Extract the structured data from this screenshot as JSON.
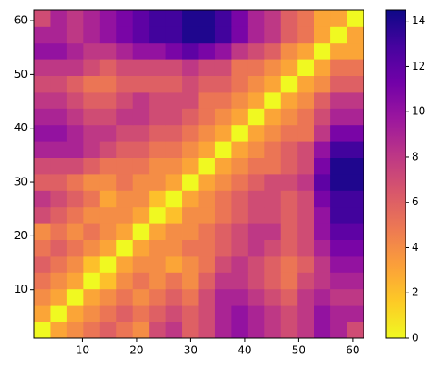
{
  "chart_data": {
    "type": "heatmap",
    "colormap": "plasma_r",
    "xlim": [
      1,
      62
    ],
    "ylim": [
      1,
      62
    ],
    "xticks": [
      10,
      20,
      30,
      40,
      50,
      60
    ],
    "yticks": [
      10,
      20,
      30,
      40,
      50,
      60
    ],
    "clim": [
      0,
      14.5
    ],
    "cticks": [
      0,
      2,
      4,
      6,
      8,
      10,
      12,
      14
    ],
    "z": [
      [
        0,
        3,
        4,
        5,
        6,
        5,
        4,
        7,
        8,
        6,
        7,
        9,
        10,
        9,
        8,
        7,
        8,
        10,
        9,
        7
      ],
      [
        3,
        0,
        3,
        4,
        5,
        6,
        5,
        6,
        7,
        6,
        7,
        9,
        10,
        9,
        8,
        7,
        8,
        10,
        9,
        9
      ],
      [
        4,
        3,
        0,
        3,
        4,
        5,
        4,
        5,
        6,
        5,
        7,
        9,
        9,
        8,
        7,
        6,
        8,
        9,
        8,
        8
      ],
      [
        5,
        4,
        3,
        0,
        2,
        4,
        5,
        4,
        5,
        4,
        6,
        8,
        8,
        7,
        6,
        5,
        7,
        8,
        9,
        9
      ],
      [
        6,
        5,
        4,
        2,
        0,
        3,
        4,
        4,
        3,
        4,
        5,
        7,
        8,
        7,
        6,
        5,
        6,
        8,
        10,
        10
      ],
      [
        5,
        6,
        5,
        4,
        3,
        0,
        3,
        4,
        4,
        5,
        5,
        6,
        7,
        8,
        7,
        6,
        7,
        9,
        11,
        11
      ],
      [
        4,
        5,
        4,
        5,
        4,
        3,
        0,
        3,
        4,
        4,
        5,
        6,
        7,
        8,
        8,
        6,
        7,
        10,
        12,
        12
      ],
      [
        7,
        6,
        5,
        4,
        4,
        4,
        3,
        0,
        2,
        4,
        4,
        5,
        6,
        7,
        7,
        6,
        7,
        10,
        13,
        13
      ],
      [
        8,
        7,
        6,
        5,
        3,
        4,
        4,
        2,
        0,
        3,
        4,
        5,
        6,
        7,
        7,
        6,
        7,
        11,
        13,
        13
      ],
      [
        6,
        6,
        5,
        4,
        4,
        5,
        4,
        4,
        3,
        0,
        3,
        4,
        5,
        6,
        7,
        7,
        8,
        12,
        14,
        14
      ],
      [
        7,
        7,
        7,
        6,
        5,
        5,
        5,
        4,
        4,
        3,
        0,
        3,
        4,
        5,
        5,
        6,
        7,
        11,
        14,
        14
      ],
      [
        9,
        9,
        9,
        8,
        7,
        6,
        6,
        5,
        5,
        4,
        3,
        0,
        3,
        4,
        5,
        6,
        7,
        10,
        13,
        13
      ],
      [
        10,
        10,
        9,
        8,
        8,
        7,
        7,
        6,
        6,
        5,
        4,
        3,
        0,
        3,
        4,
        5,
        5,
        8,
        11,
        11
      ],
      [
        9,
        9,
        8,
        7,
        7,
        8,
        8,
        7,
        7,
        6,
        5,
        4,
        3,
        0,
        3,
        4,
        5,
        7,
        9,
        9
      ],
      [
        8,
        8,
        7,
        6,
        6,
        7,
        8,
        7,
        7,
        7,
        5,
        5,
        4,
        3,
        0,
        3,
        4,
        6,
        8,
        8
      ],
      [
        7,
        7,
        6,
        5,
        5,
        6,
        6,
        6,
        6,
        7,
        6,
        6,
        5,
        4,
        3,
        0,
        3,
        4,
        6,
        6
      ],
      [
        8,
        8,
        8,
        7,
        6,
        7,
        7,
        7,
        7,
        8,
        7,
        7,
        5,
        5,
        4,
        3,
        0,
        3,
        5,
        5
      ],
      [
        10,
        10,
        9,
        8,
        8,
        9,
        10,
        10,
        11,
        12,
        11,
        10,
        8,
        7,
        6,
        4,
        3,
        0,
        3,
        3
      ],
      [
        9,
        9,
        8,
        9,
        10,
        11,
        12,
        13,
        13,
        14,
        14,
        13,
        11,
        9,
        8,
        6,
        5,
        3,
        0,
        3
      ],
      [
        7,
        9,
        8,
        9,
        10,
        11,
        12,
        13,
        13,
        14,
        14,
        13,
        11,
        9,
        8,
        6,
        5,
        3,
        3,
        0
      ]
    ]
  }
}
